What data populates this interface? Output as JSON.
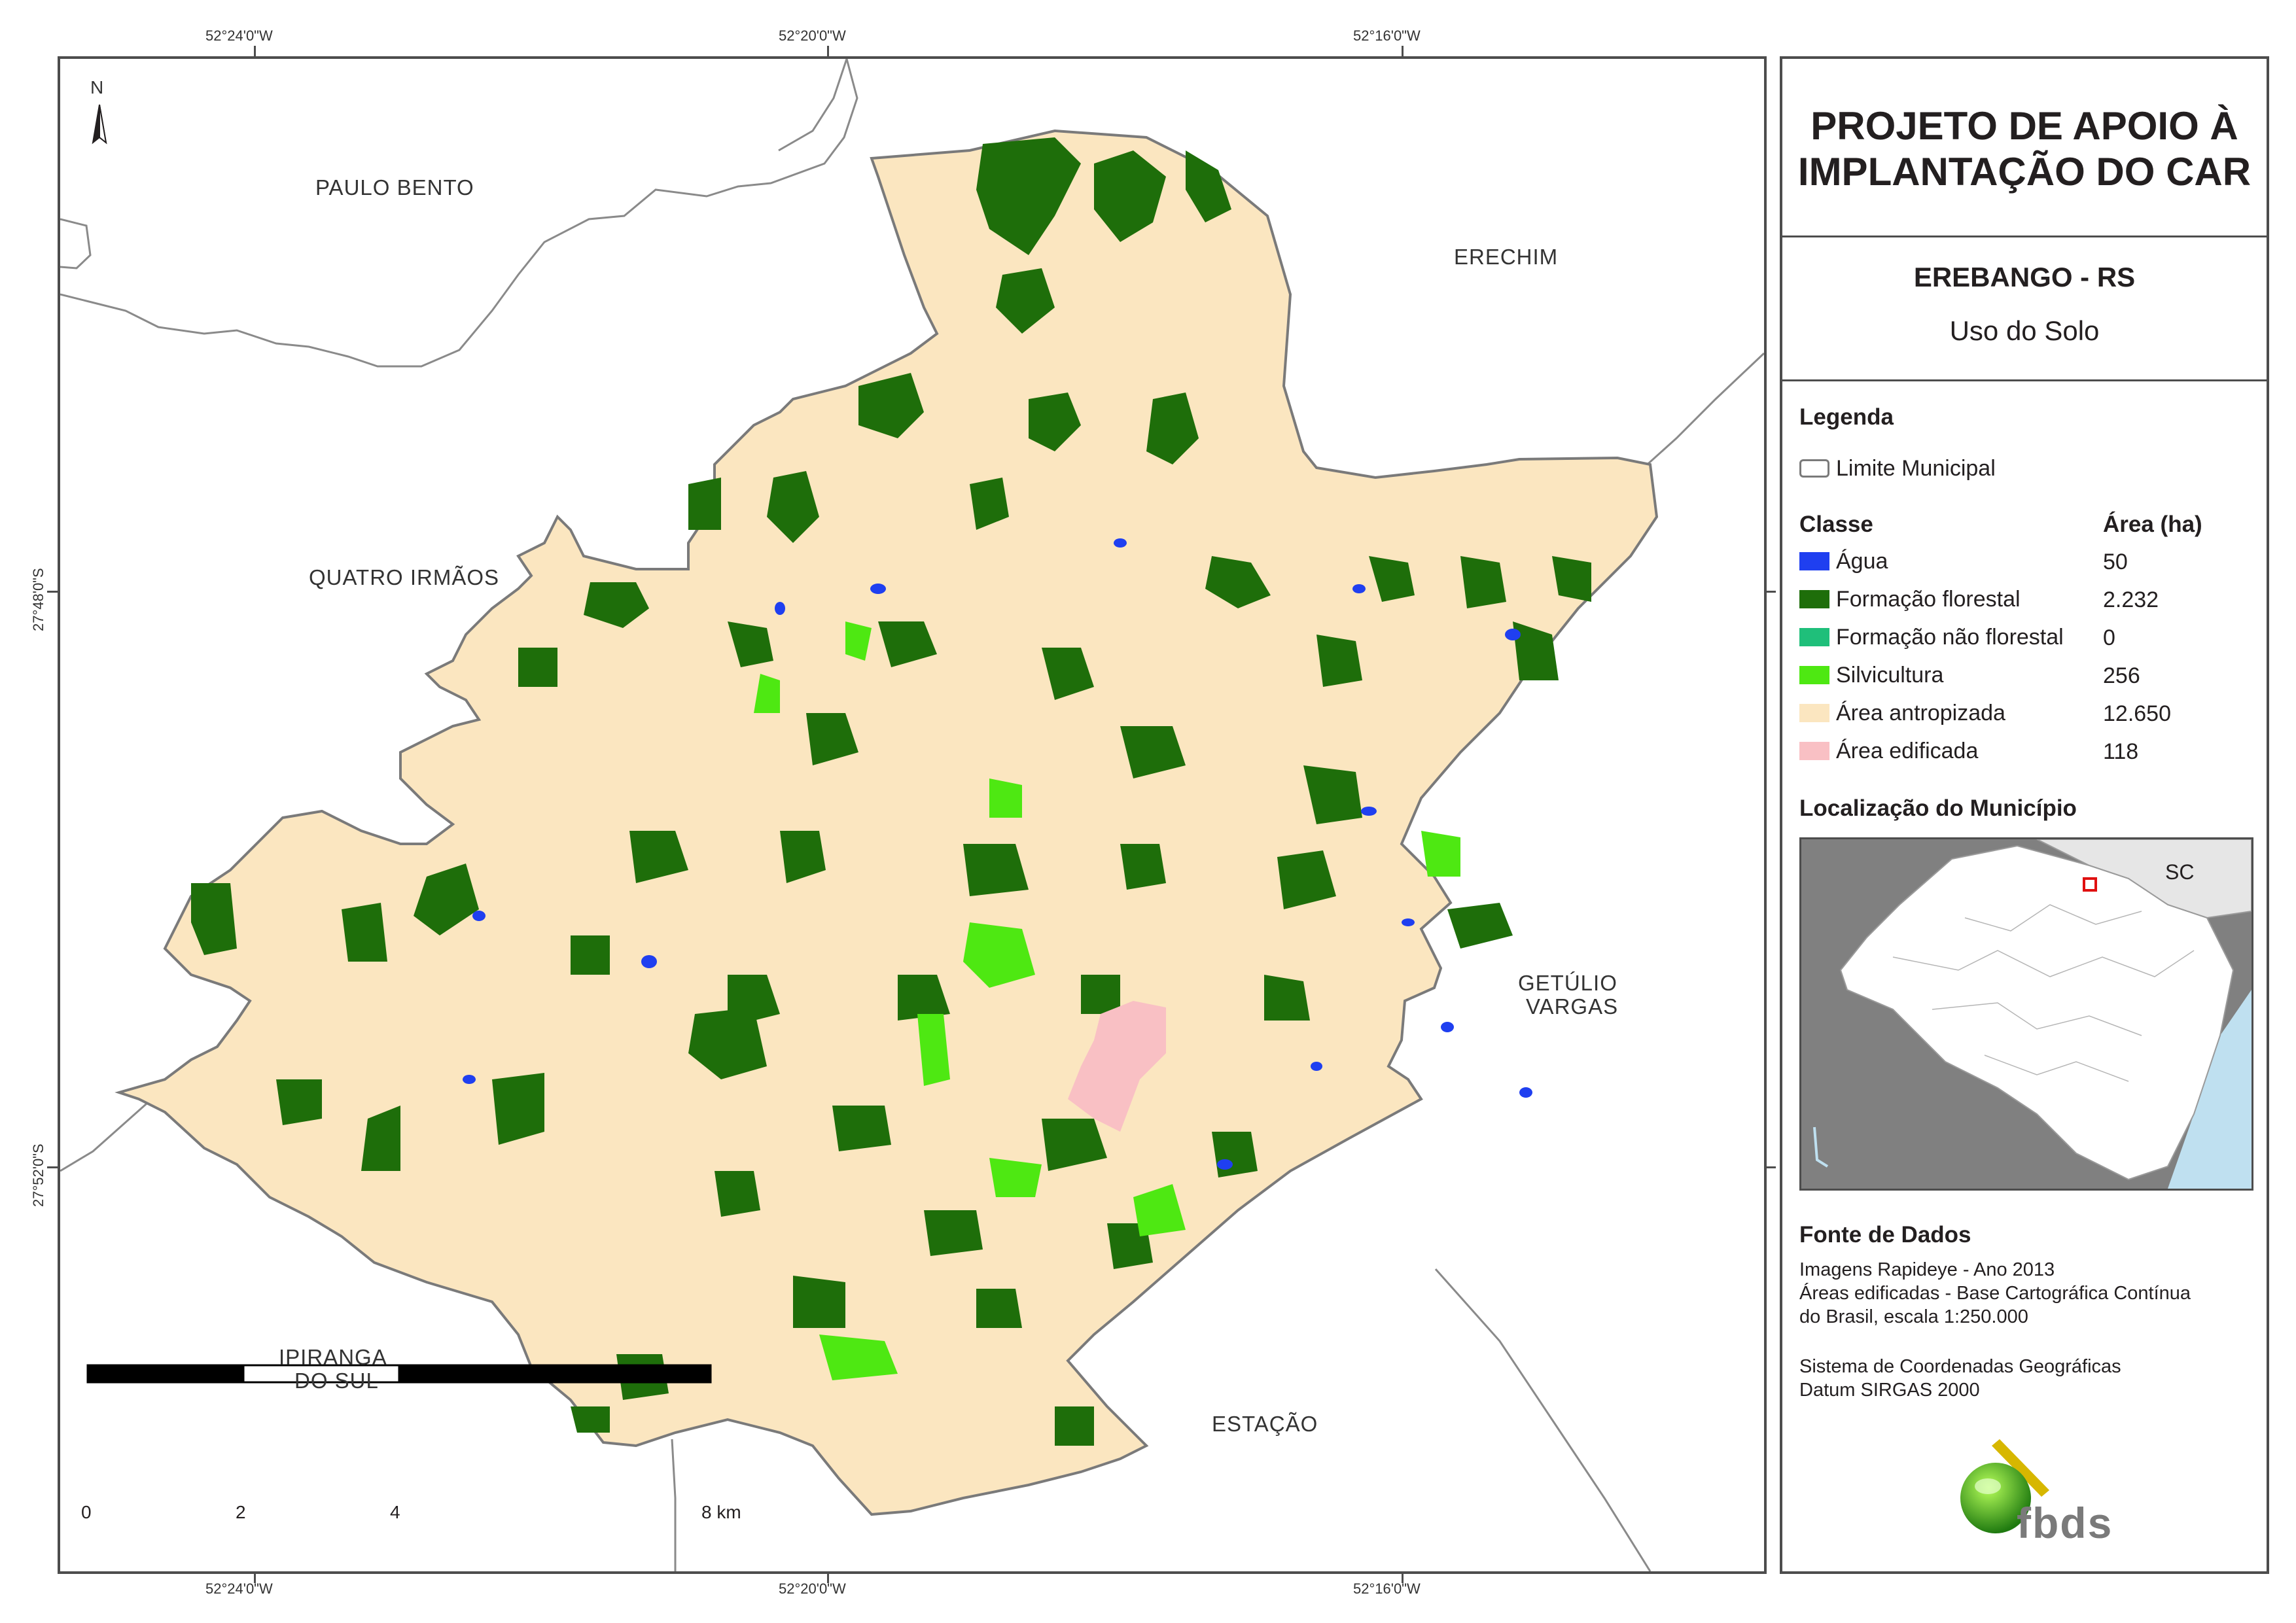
{
  "coordinates": {
    "top": [
      "52°24'0\"W",
      "52°20'0\"W",
      "52°16'0\"W"
    ],
    "bottom": [
      "52°24'0\"W",
      "52°20'0\"W",
      "52°16'0\"W"
    ],
    "left": [
      "27°48'0\"S",
      "27°52'0\"S"
    ]
  },
  "map": {
    "north_label": "N",
    "places": {
      "paulo_bento": "PAULO BENTO",
      "erechim": "ERECHIM",
      "quatro_irmaos": "QUATRO IRMÃOS",
      "getulio_vargas_1": "GETÚLIO",
      "getulio_vargas_2": "VARGAS",
      "ipiranga_1": "IPIRANGA",
      "ipiranga_2": "DO SUL",
      "estacao": "ESTAÇÃO"
    },
    "scale_bar": {
      "labels": [
        "0",
        "2",
        "4",
        "8 km"
      ]
    }
  },
  "panel": {
    "title_line1": "PROJETO DE APOIO À",
    "title_line2": "IMPLANTAÇÃO DO CAR",
    "municipality": "EREBANGO - RS",
    "theme": "Uso do Solo",
    "legend_heading": "Legenda",
    "boundary_label": "Limite Municipal",
    "class_heading": "Classe",
    "area_heading": "Área (ha)",
    "classes": [
      {
        "label": "Água",
        "area": "50",
        "color": "#1f3ff0"
      },
      {
        "label": "Formação florestal",
        "area": "2.232",
        "color": "#1e6e0a"
      },
      {
        "label": "Formação não florestal",
        "area": "0",
        "color": "#1fbf7a"
      },
      {
        "label": "Silvicultura",
        "area": "256",
        "color": "#4ee812"
      },
      {
        "label": "Área antropizada",
        "area": "12.650",
        "color": "#fbe6c0"
      },
      {
        "label": "Área edificada",
        "area": "118",
        "color": "#f9c0c4"
      }
    ],
    "location_heading": "Localização do Município",
    "inset_label": "SC",
    "source_heading": "Fonte de Dados",
    "source_lines": [
      "Imagens Rapideye - Ano 2013",
      "Áreas edificadas - Base Cartográfica Contínua",
      "do Brasil, escala 1:250.000"
    ],
    "crs_lines": [
      "Sistema de Coordenadas Geográficas",
      "Datum SIRGAS 2000"
    ],
    "logo_text": "fbds"
  },
  "colors": {
    "frame": "#4d4d4d",
    "boundary": "#8a8a8a",
    "municipio_fill": "#fbe6c0",
    "ocean": "#bfe0f0"
  }
}
